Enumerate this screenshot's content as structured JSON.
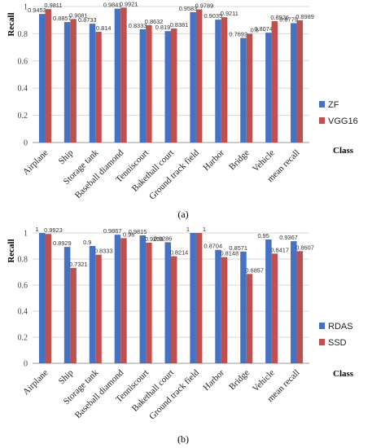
{
  "chart_data": [
    {
      "type": "bar",
      "caption": "(a)",
      "xlabel": "Class",
      "ylabel": "Recall",
      "ylim": [
        0,
        1
      ],
      "yticks": [
        "0",
        "0.2",
        "0.4",
        "0.6",
        "0.8",
        "1"
      ],
      "grid": true,
      "legend_position": "right",
      "categories": [
        "Airplane",
        "Ship",
        "Storage tank",
        "Baseball diamond",
        "Tenniscourt",
        "Bakethall court",
        "Ground track field",
        "Harbor",
        "Bridge",
        "Vehicle",
        "mean recall"
      ],
      "series": [
        {
          "name": "ZF",
          "color": "#4472c4",
          "values": [
            0.9453,
            0.8857,
            0.8733,
            0.9841,
            0.8333,
            0.819,
            0.9583,
            0.9035,
            0.7692,
            0.8074,
            0.8779
          ],
          "labels": [
            "0.9453",
            "0.8857",
            "0.8733",
            "0.9841",
            "0.8333",
            "0.819",
            "0.9583",
            "0.9035",
            "0.7692",
            "0.8074",
            "0.8779"
          ]
        },
        {
          "name": "VGG16",
          "color": "#c0504d",
          "values": [
            0.9811,
            0.9081,
            0.814,
            0.9921,
            0.8632,
            0.8381,
            0.9789,
            0.9211,
            0.8,
            0.8926,
            0.8989
          ],
          "labels": [
            "0.9811",
            "0.9081",
            "0.814",
            "0.9921",
            "0.8632",
            "0.8381",
            "0.9789",
            "0.9211",
            "0.8",
            "0.8926",
            "0.8989"
          ]
        }
      ]
    },
    {
      "type": "bar",
      "caption": "(b)",
      "xlabel": "Class",
      "ylabel": "Recall",
      "ylim": [
        0,
        1
      ],
      "yticks": [
        "0",
        "0.2",
        "0.4",
        "0.6",
        "0.8",
        "1"
      ],
      "grid": true,
      "legend_position": "right",
      "categories": [
        "Airplane",
        "Ship",
        "Storage tank",
        "Baseball diamond",
        "Tenniscourt",
        "Bakethall court",
        "Ground track field",
        "Harbor",
        "Bridge",
        "Vehicle",
        "mean recall"
      ],
      "series": [
        {
          "name": "RDAS",
          "color": "#4472c4",
          "values": [
            1,
            0.8929,
            0.9,
            0.9867,
            0.9815,
            0.9286,
            1,
            0.8704,
            0.8571,
            0.95,
            0.9367
          ],
          "labels": [
            "1",
            "0.8929",
            "0.9",
            "0.9867",
            "0.9815",
            "0.9286",
            "1",
            "0.8704",
            "0.8571",
            "0.95",
            "0.9367"
          ]
        },
        {
          "name": "SSD",
          "color": "#c0504d",
          "values": [
            0.9923,
            0.7321,
            0.8333,
            0.96,
            0.9259,
            0.8214,
            1,
            0.8148,
            0.6857,
            0.8417,
            0.8607
          ],
          "labels": [
            "0.9923",
            "0.7321",
            "0.8333",
            "0.96",
            "0.9259",
            "0.8214",
            "1",
            "0.8148",
            "0.6857",
            "0.8417",
            "0.8607"
          ]
        }
      ]
    }
  ]
}
